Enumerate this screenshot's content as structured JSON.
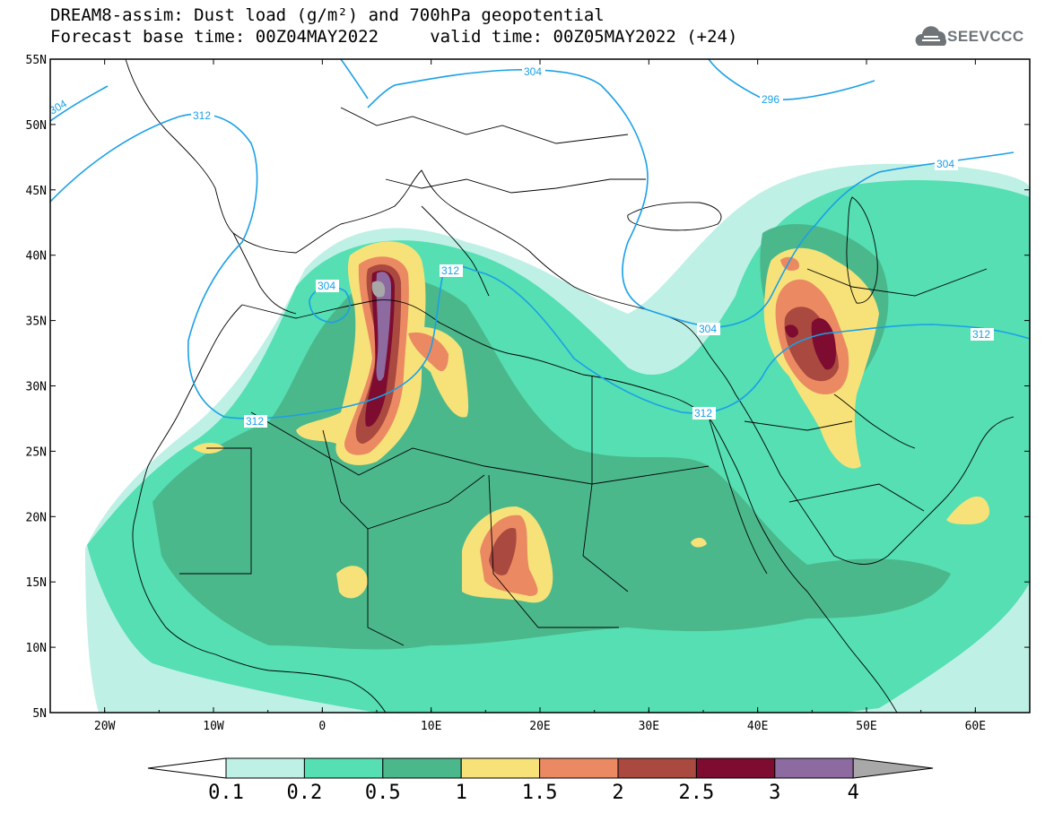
{
  "header": {
    "title_line1": "DREAM8-assim: Dust load (g/m²) and 700hPa geopotential",
    "title_line2": "Forecast base time: 00Z04MAY2022     valid time: 00Z05MAY2022 (+24)"
  },
  "logo": {
    "text": "SEEVCCC",
    "icon": "cloud-icon"
  },
  "map": {
    "lat_range": [
      5,
      55
    ],
    "lon_range": [
      -25,
      65
    ],
    "lat_labels": [
      "55N",
      "50N",
      "45N",
      "40N",
      "35N",
      "30N",
      "25N",
      "20N",
      "15N",
      "10N",
      "5N"
    ],
    "lon_labels": [
      "20W",
      "10W",
      "0",
      "10E",
      "20E",
      "30E",
      "40E",
      "50E",
      "60E"
    ],
    "contour_labels": [
      "304",
      "312",
      "304",
      "296",
      "304",
      "312",
      "312",
      "304",
      "312",
      "304",
      "312"
    ]
  },
  "colorbar": {
    "labels": [
      "0.1",
      "0.2",
      "0.5",
      "1",
      "1.5",
      "2",
      "2.5",
      "3",
      "4"
    ],
    "colors": [
      "#bff0e6",
      "#55dfb3",
      "#4bb88c",
      "#f7e27a",
      "#eb8a62",
      "#a9493f",
      "#7d0c30",
      "#8d6aa0",
      "#a8a8a8"
    ]
  },
  "colors": {
    "ocean": "#ffffff",
    "contour": "#1aa0e6",
    "coast": "#000000"
  }
}
